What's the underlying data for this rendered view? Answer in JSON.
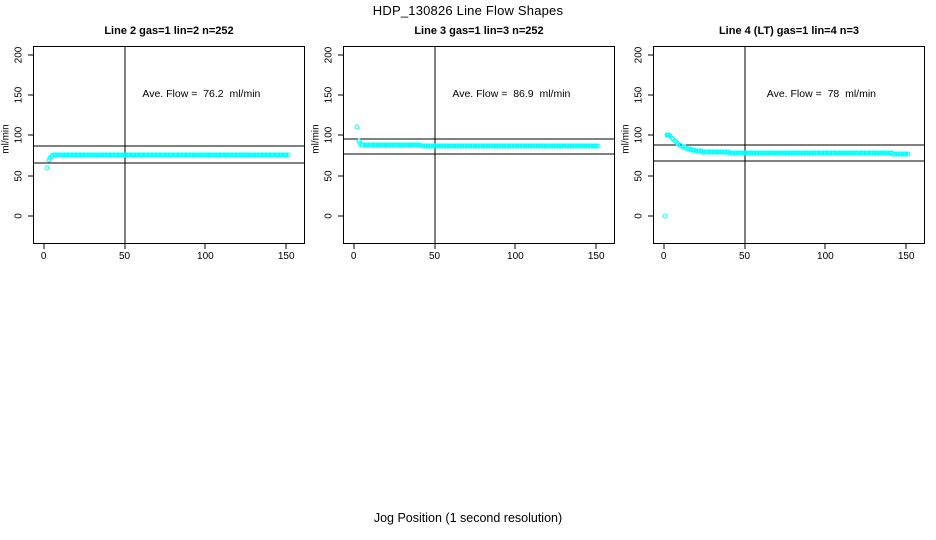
{
  "figure": {
    "main_title": "HDP_130826  Line Flow Shapes",
    "bottom_axis_label": "Jog Position (1 second resolution)",
    "background_color": "#ffffff",
    "axis_color": "#000000",
    "point_color": "#00ffff"
  },
  "chart_data": {
    "type": "scatter",
    "title": "HDP_130826  Line Flow Shapes",
    "xlabel": "Jog Position (1 second resolution)",
    "ylabel": "ml/min",
    "x_ticks": [
      0,
      50,
      100,
      150
    ],
    "y_ticks": [
      0,
      50,
      100,
      150,
      200
    ],
    "x_range_usr": [
      -6,
      161
    ],
    "y_range_usr": [
      -34,
      210
    ],
    "grid": false,
    "panels": [
      {
        "title": "Line 2 gas=1 lin=2 n=252",
        "annotation": "Ave. Flow =  76.2  ml/min",
        "ave_flow_ml_min": 76.2,
        "n": 252,
        "ylab": "ml/min",
        "hlines": [
          87,
          66
        ],
        "vline": 50,
        "points_outliers": [
          [
            2,
            60
          ]
        ],
        "points_transient": [
          [
            3,
            69
          ],
          [
            4,
            72
          ],
          [
            5,
            74
          ],
          [
            6,
            75
          ],
          [
            7,
            75.5
          ]
        ],
        "plateau": {
          "x_from": 8,
          "x_to": 151,
          "step": 1,
          "y_from": 76,
          "y_to": 76
        }
      },
      {
        "title": "Line 3 gas=1 lin=3 n=252",
        "annotation": "Ave. Flow =  86.9  ml/min",
        "ave_flow_ml_min": 86.9,
        "n": 252,
        "ylab": "ml/min",
        "hlines": [
          96,
          77
        ],
        "vline": 50,
        "points_outliers": [
          [
            2,
            111
          ]
        ],
        "points_transient": [
          [
            3,
            93
          ],
          [
            4,
            90
          ],
          [
            5,
            88.5
          ]
        ],
        "plateau": {
          "x_from": 6,
          "x_to": 151,
          "step": 1,
          "y_from": 87.5,
          "y_to": 87
        }
      },
      {
        "title": "Line 4 (LT) gas=1 lin=4 n=3",
        "annotation": "Ave. Flow =  78  ml/min",
        "ave_flow_ml_min": 78,
        "n": 3,
        "ylab": "ml/min",
        "hlines": [
          88,
          68
        ],
        "vline": 50,
        "points_outliers": [
          [
            1,
            0
          ]
        ],
        "points_transient": [
          [
            2,
            101
          ],
          [
            2.5,
            100.5
          ],
          [
            3,
            100
          ],
          [
            4,
            99
          ],
          [
            5,
            97
          ],
          [
            6,
            95
          ],
          [
            7,
            93
          ],
          [
            8,
            91
          ],
          [
            9,
            89.5
          ],
          [
            10,
            88
          ],
          [
            11,
            87
          ],
          [
            12,
            86
          ],
          [
            13,
            85
          ],
          [
            14,
            84.3
          ],
          [
            15,
            83.6
          ],
          [
            16,
            83
          ],
          [
            17,
            82.4
          ],
          [
            18,
            81.9
          ],
          [
            19,
            81.4
          ],
          [
            20,
            81
          ],
          [
            21,
            80.6
          ],
          [
            22,
            80.3
          ],
          [
            23,
            80
          ],
          [
            24,
            79.8
          ],
          [
            25,
            79.6
          ],
          [
            26,
            79.4
          ],
          [
            27,
            79.2
          ],
          [
            28,
            79
          ],
          [
            29,
            78.9
          ]
        ],
        "plateau": {
          "x_from": 30,
          "x_to": 151,
          "step": 1,
          "y_from": 78.8,
          "y_to": 77.3
        }
      }
    ]
  }
}
